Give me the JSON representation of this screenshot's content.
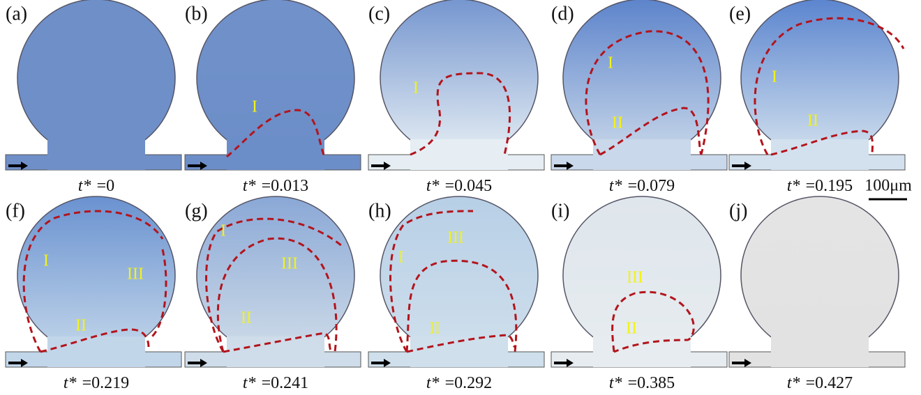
{
  "panels": [
    {
      "label": "(a)",
      "time_symbol": "t*",
      "time_value": "=0",
      "regions": []
    },
    {
      "label": "(b)",
      "time_symbol": "t*",
      "time_value": "=0.013",
      "regions": [
        "I"
      ]
    },
    {
      "label": "(c)",
      "time_symbol": "t*",
      "time_value": "=0.045",
      "regions": [
        "I"
      ]
    },
    {
      "label": "(d)",
      "time_symbol": "t*",
      "time_value": "=0.079",
      "regions": [
        "I",
        "II"
      ]
    },
    {
      "label": "(e)",
      "time_symbol": "t*",
      "time_value": "=0.195",
      "regions": [
        "I",
        "II"
      ]
    },
    {
      "label": "(f)",
      "time_symbol": "t*",
      "time_value": "=0.219",
      "regions": [
        "I",
        "II",
        "III"
      ]
    },
    {
      "label": "(g)",
      "time_symbol": "t*",
      "time_value": "=0.241",
      "regions": [
        "I",
        "III",
        "II"
      ]
    },
    {
      "label": "(h)",
      "time_symbol": "t*",
      "time_value": "=0.292",
      "regions": [
        "I",
        "III",
        "II"
      ]
    },
    {
      "label": "(i)",
      "time_symbol": "t*",
      "time_value": "=0.385",
      "regions": [
        "III",
        "II"
      ]
    },
    {
      "label": "(j)",
      "time_symbol": "t*",
      "time_value": "=0.427",
      "regions": []
    }
  ],
  "scale_bar": "100μm"
}
